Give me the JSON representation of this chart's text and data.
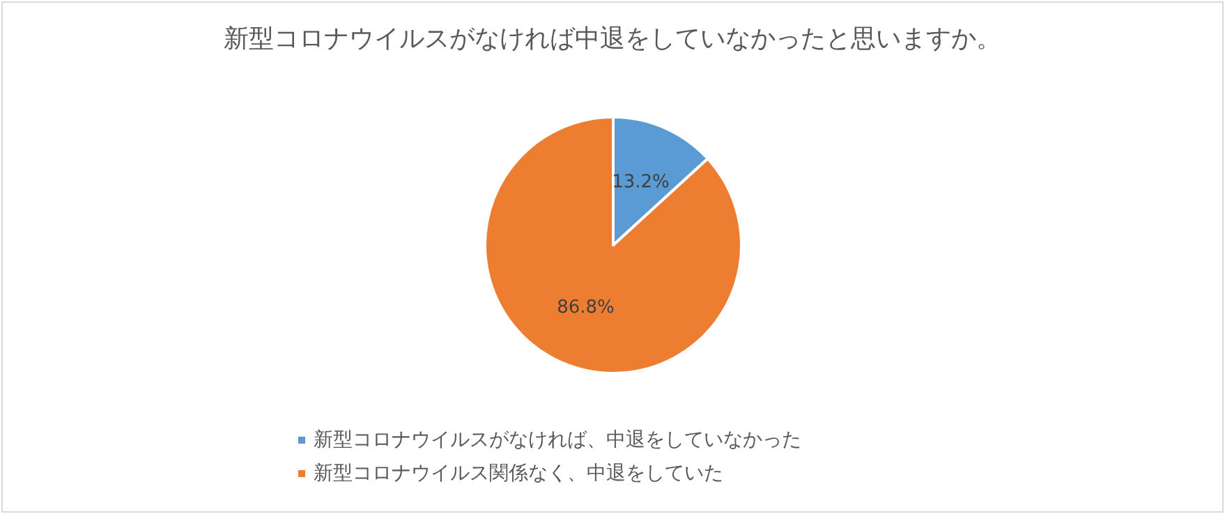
{
  "chart_data": {
    "type": "pie",
    "title": "新型コロナウイルスがなければ中退をしていなかったと思いますか。",
    "categories": [
      "新型コロナウイルスがなければ、中退をしていなかった",
      "新型コロナウイルス関係なく、中退をしていた"
    ],
    "values": [
      13.2,
      86.8
    ],
    "colors": [
      "#5b9bd5",
      "#ed7d31"
    ],
    "value_labels": [
      "13.2%",
      "86.8%"
    ],
    "legend": "bottom"
  }
}
